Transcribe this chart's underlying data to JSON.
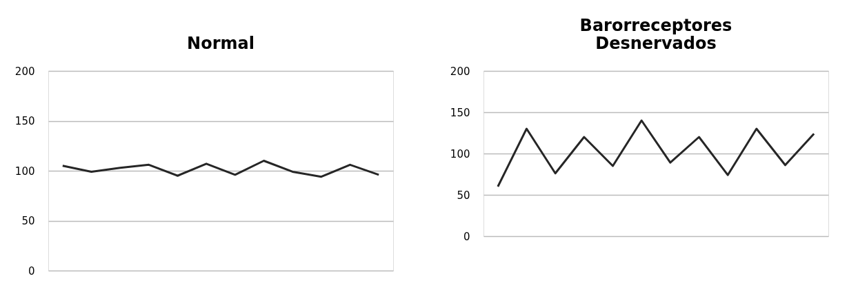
{
  "chart_data": [
    {
      "type": "line",
      "title": "Normal",
      "categories": [
        null,
        null,
        null,
        null,
        null,
        null,
        null,
        null,
        null,
        null,
        null,
        null
      ],
      "series": [
        {
          "color": "#262626",
          "values": [
            105,
            99,
            103,
            106,
            95,
            107,
            96,
            110,
            99,
            94,
            106,
            96
          ]
        }
      ],
      "ylim": [
        0,
        200
      ],
      "yticks": [
        0,
        50,
        100,
        150,
        200
      ],
      "grid": "y",
      "tick_labels": "y",
      "marker": "none",
      "line_style": "solid"
    },
    {
      "type": "line",
      "title": "Barorreceptores\nDesnervados",
      "categories": [
        null,
        null,
        null,
        null,
        null,
        null,
        null,
        null,
        null,
        null,
        null,
        null
      ],
      "series": [
        {
          "color": "#262626",
          "values": [
            60,
            130,
            76,
            120,
            85,
            140,
            89,
            120,
            74,
            130,
            86,
            124
          ]
        }
      ],
      "ylim": [
        0,
        200
      ],
      "yticks": [
        0,
        50,
        100,
        150,
        200
      ],
      "grid": "y",
      "tick_labels": "y",
      "marker": "none",
      "line_style": "solid"
    }
  ]
}
